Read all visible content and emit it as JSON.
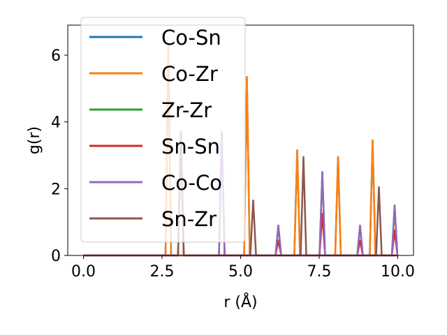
{
  "chart_data": {
    "type": "line",
    "title": "",
    "xlabel": "r (Å)",
    "ylabel": "g(r)",
    "xlim": [
      -0.5,
      10.5
    ],
    "ylim": [
      0,
      6.9
    ],
    "xticks": [
      0.0,
      2.5,
      5.0,
      7.5,
      10.0
    ],
    "xtick_labels": [
      "0.0",
      "2.5",
      "5.0",
      "7.5",
      "10.0"
    ],
    "yticks": [
      0,
      2,
      4,
      6
    ],
    "ytick_labels": [
      "0",
      "2",
      "4",
      "6"
    ],
    "grid": false,
    "legend_position": "upper-left",
    "peak_half_width": 0.09,
    "series": [
      {
        "name": "Co-Sn",
        "color": "#1f77b4",
        "peaks": [
          [
            2.7,
            6.3
          ],
          [
            5.2,
            5.35
          ],
          [
            6.8,
            3.15
          ],
          [
            8.1,
            2.95
          ],
          [
            9.2,
            3.45
          ]
        ]
      },
      {
        "name": "Co-Zr",
        "color": "#ff7f0e",
        "peaks": [
          [
            2.7,
            6.3
          ],
          [
            5.2,
            5.35
          ],
          [
            6.8,
            3.15
          ],
          [
            8.1,
            2.95
          ],
          [
            9.2,
            3.45
          ]
        ]
      },
      {
        "name": "Zr-Zr",
        "color": "#2ca02c",
        "peaks": [
          [
            3.1,
            3.7
          ],
          [
            4.4,
            3.7
          ],
          [
            6.2,
            0.9
          ],
          [
            7.6,
            2.5
          ],
          [
            8.8,
            0.9
          ],
          [
            9.9,
            1.5
          ]
        ]
      },
      {
        "name": "Sn-Sn",
        "color": "#d62728",
        "peaks": [
          [
            3.1,
            3.7
          ],
          [
            4.4,
            3.7
          ],
          [
            6.2,
            0.45
          ],
          [
            7.6,
            1.25
          ],
          [
            8.8,
            0.45
          ],
          [
            9.9,
            0.75
          ]
        ]
      },
      {
        "name": "Co-Co",
        "color": "#9467bd",
        "peaks": [
          [
            3.1,
            3.7
          ],
          [
            4.4,
            3.7
          ],
          [
            6.2,
            0.9
          ],
          [
            7.6,
            2.5
          ],
          [
            8.8,
            0.9
          ],
          [
            9.9,
            1.5
          ]
        ]
      },
      {
        "name": "Sn-Zr",
        "color": "#8c564b",
        "peaks": [
          [
            3.1,
            3.7
          ],
          [
            5.4,
            1.65
          ],
          [
            7.0,
            2.95
          ],
          [
            9.4,
            2.05
          ]
        ]
      }
    ]
  }
}
